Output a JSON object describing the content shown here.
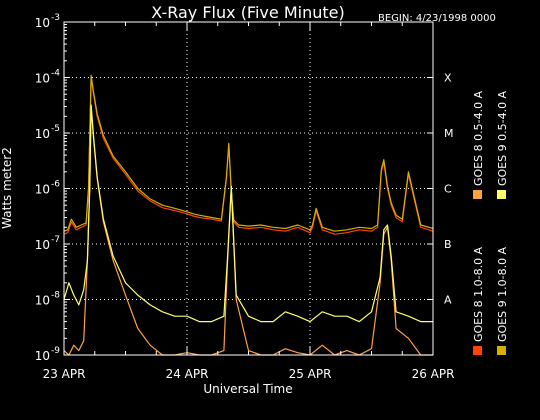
{
  "chart_data": {
    "type": "line",
    "title": "X-Ray Flux (Five Minute)",
    "begin": "BEGIN: 4/23/1998 0000",
    "xlabel": "Universal Time",
    "ylabel": "Watts meter2",
    "yscale": "log",
    "ylim": [
      1e-09,
      0.001
    ],
    "xlim": [
      0,
      3
    ],
    "y_ticks": [
      {
        "base": "10",
        "exp": "-3",
        "value": 0.001
      },
      {
        "base": "10",
        "exp": "-4",
        "value": 0.0001
      },
      {
        "base": "10",
        "exp": "-5",
        "value": 1e-05
      },
      {
        "base": "10",
        "exp": "-6",
        "value": 1e-06
      },
      {
        "base": "10",
        "exp": "-7",
        "value": 1e-07
      },
      {
        "base": "10",
        "exp": "-8",
        "value": 1e-08
      },
      {
        "base": "10",
        "exp": "-9",
        "value": 1e-09
      }
    ],
    "x_ticks": [
      {
        "label": "23 APR",
        "value": 0
      },
      {
        "label": "24 APR",
        "value": 1
      },
      {
        "label": "25 APR",
        "value": 2
      },
      {
        "label": "26 APR",
        "value": 3
      }
    ],
    "flare_classes": [
      {
        "label": "X",
        "value": 0.0001
      },
      {
        "label": "M",
        "value": 1e-05
      },
      {
        "label": "C",
        "value": 1e-06
      },
      {
        "label": "B",
        "value": 1e-07
      },
      {
        "label": "A",
        "value": 1e-08
      }
    ],
    "grid": true,
    "legend_position": "right",
    "series": [
      {
        "name": "GOES 8 1.0-8.0 A",
        "color": "#ff4500",
        "x": [
          0,
          0.03,
          0.06,
          0.1,
          0.14,
          0.18,
          0.2,
          0.22,
          0.24,
          0.27,
          0.32,
          0.4,
          0.5,
          0.6,
          0.7,
          0.8,
          0.9,
          1.0,
          1.05,
          1.1,
          1.2,
          1.28,
          1.32,
          1.34,
          1.36,
          1.38,
          1.42,
          1.5,
          1.6,
          1.7,
          1.8,
          1.9,
          2.0,
          2.02,
          2.05,
          2.1,
          2.2,
          2.3,
          2.4,
          2.5,
          2.55,
          2.58,
          2.6,
          2.63,
          2.66,
          2.7,
          2.75,
          2.8,
          2.9,
          3.0
        ],
        "y": [
          1.5e-07,
          1.6e-07,
          2.5e-07,
          1.8e-07,
          2e-07,
          2.2e-07,
          1e-06,
          0.0001,
          5e-05,
          2e-05,
          8e-06,
          3.5e-06,
          1.8e-06,
          9e-07,
          6e-07,
          4.5e-07,
          4e-07,
          3.5e-07,
          3.2e-07,
          3e-07,
          2.8e-07,
          2.6e-07,
          1.5e-06,
          6e-06,
          8e-07,
          2.5e-07,
          2e-07,
          1.9e-07,
          2e-07,
          1.8e-07,
          1.7e-07,
          2e-07,
          1.6e-07,
          2e-07,
          4e-07,
          1.8e-07,
          1.5e-07,
          1.6e-07,
          1.8e-07,
          1.7e-07,
          2e-07,
          2e-06,
          3e-06,
          1e-06,
          5e-07,
          3e-07,
          2.5e-07,
          1.8e-06,
          2e-07,
          1.7e-07
        ]
      },
      {
        "name": "GOES 8 0.5-4.0 A",
        "color": "#ffa040",
        "x": [
          0,
          0.04,
          0.08,
          0.12,
          0.16,
          0.19,
          0.21,
          0.22,
          0.24,
          0.27,
          0.32,
          0.4,
          0.5,
          0.6,
          0.7,
          0.8,
          0.9,
          1.0,
          1.1,
          1.2,
          1.3,
          1.33,
          1.36,
          1.4,
          1.5,
          1.6,
          1.7,
          1.8,
          1.9,
          2.0,
          2.1,
          2.2,
          2.3,
          2.4,
          2.5,
          2.57,
          2.6,
          2.63,
          2.66,
          2.7,
          2.8,
          2.9,
          3.0
        ],
        "y": [
          1.2e-09,
          1e-09,
          1.5e-09,
          1.2e-09,
          1.8e-09,
          5e-08,
          1e-06,
          3e-05,
          8e-06,
          1.5e-06,
          2.5e-07,
          5e-08,
          1.2e-08,
          3e-09,
          1.5e-09,
          1e-09,
          1e-09,
          1.1e-09,
          1e-09,
          1e-09,
          1.2e-09,
          5e-08,
          1e-06,
          1e-08,
          1.2e-09,
          1e-09,
          1e-09,
          1.3e-09,
          1.1e-09,
          1e-09,
          1.5e-09,
          1e-09,
          1.2e-09,
          1e-09,
          1.3e-09,
          2e-08,
          1.5e-07,
          2e-07,
          5e-08,
          3e-09,
          2e-09,
          1e-09,
          1e-09
        ]
      },
      {
        "name": "GOES 9 1.0-8.0 A",
        "color": "#d4b000",
        "x": [
          0,
          0.03,
          0.06,
          0.1,
          0.14,
          0.18,
          0.2,
          0.22,
          0.24,
          0.27,
          0.32,
          0.4,
          0.5,
          0.6,
          0.7,
          0.8,
          0.9,
          1.0,
          1.05,
          1.1,
          1.2,
          1.28,
          1.32,
          1.34,
          1.36,
          1.38,
          1.42,
          1.5,
          1.6,
          1.7,
          1.8,
          1.9,
          2.0,
          2.02,
          2.05,
          2.1,
          2.2,
          2.3,
          2.4,
          2.5,
          2.55,
          2.58,
          2.6,
          2.63,
          2.66,
          2.7,
          2.75,
          2.8,
          2.9,
          3.0
        ],
        "y": [
          1.7e-07,
          1.8e-07,
          2.8e-07,
          2e-07,
          2.2e-07,
          2.4e-07,
          1.1e-06,
          0.00011,
          5.5e-05,
          2.2e-05,
          9e-06,
          3.8e-06,
          2e-06,
          1e-06,
          6.5e-07,
          5e-07,
          4.4e-07,
          3.8e-07,
          3.5e-07,
          3.3e-07,
          3e-07,
          2.8e-07,
          1.6e-06,
          6.5e-06,
          9e-07,
          2.7e-07,
          2.2e-07,
          2.1e-07,
          2.2e-07,
          2e-07,
          1.9e-07,
          2.2e-07,
          1.8e-07,
          2.2e-07,
          4.4e-07,
          2e-07,
          1.7e-07,
          1.8e-07,
          2e-07,
          1.9e-07,
          2.2e-07,
          2.2e-06,
          3.3e-06,
          1.1e-06,
          5.5e-07,
          3.3e-07,
          2.8e-07,
          2e-06,
          2.2e-07,
          1.9e-07
        ]
      },
      {
        "name": "GOES 9 0.5-4.0 A",
        "color": "#ffff66",
        "x": [
          0,
          0.04,
          0.08,
          0.12,
          0.16,
          0.19,
          0.21,
          0.22,
          0.24,
          0.27,
          0.32,
          0.4,
          0.5,
          0.6,
          0.7,
          0.8,
          0.9,
          1.0,
          1.1,
          1.2,
          1.3,
          1.33,
          1.36,
          1.4,
          1.5,
          1.6,
          1.7,
          1.8,
          1.9,
          2.0,
          2.1,
          2.2,
          2.3,
          2.4,
          2.5,
          2.57,
          2.6,
          2.63,
          2.66,
          2.7,
          2.8,
          2.9,
          3.0
        ],
        "y": [
          1e-08,
          2e-08,
          1.2e-08,
          8e-09,
          1.5e-08,
          5e-08,
          1.2e-06,
          3.2e-05,
          9e-06,
          1.6e-06,
          2.8e-07,
          6e-08,
          2e-08,
          1.2e-08,
          8e-09,
          6e-09,
          5e-09,
          5e-09,
          4e-09,
          4e-09,
          5e-09,
          6e-08,
          1.1e-06,
          1.2e-08,
          5e-09,
          4e-09,
          4e-09,
          6e-09,
          5e-09,
          4e-09,
          6e-09,
          5e-09,
          5e-09,
          4e-09,
          6e-09,
          2.5e-08,
          1.8e-07,
          2.2e-07,
          6e-08,
          6e-09,
          5e-09,
          4e-09,
          4e-09
        ]
      }
    ]
  }
}
